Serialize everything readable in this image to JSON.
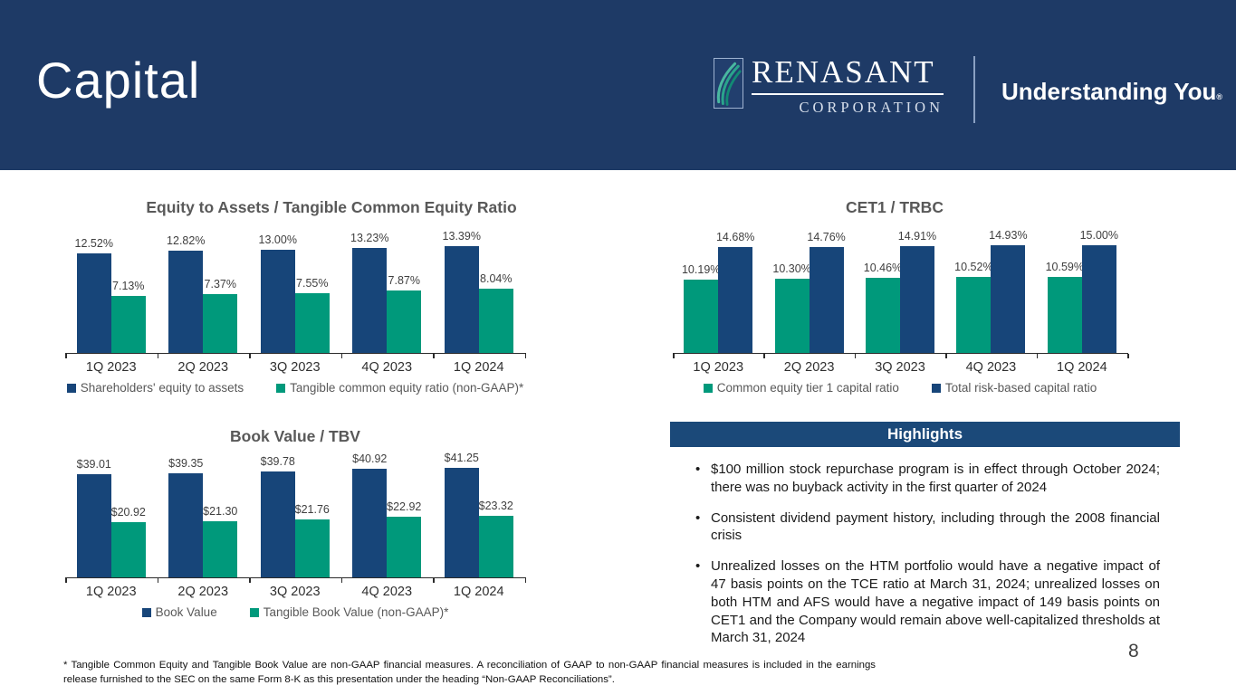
{
  "slide": {
    "title": "Capital",
    "page_number": "8",
    "footnote": "* Tangible Common Equity and Tangible Book Value are non-GAAP financial measures. A reconciliation of GAAP to non-GAAP financial measures is included in the earnings release furnished to the SEC on the same Form 8-K as this presentation under the heading “Non-GAAP Reconciliations”.",
    "bullet_char": "•"
  },
  "brand": {
    "logo_name": "RENASANT",
    "logo_subtitle": "CORPORATION",
    "tagline": "Understanding You",
    "tagline_mark": "®"
  },
  "colors": {
    "header_navy": "#1e3a66",
    "bar_navy": "#174579",
    "bar_teal": "#00997b",
    "highlights_navy": "#1b4979",
    "title_gray": "#595959",
    "value_label_gray": "#3f3f3f",
    "logo_teal": "#2aa48c"
  },
  "highlights": {
    "header": "Highlights",
    "bullets": [
      "$100 million stock repurchase program is in effect through October 2024; there was no buyback activity in the first quarter of 2024",
      "Consistent dividend payment history, including through the 2008 financial crisis",
      "Unrealized losses on the HTM portfolio would have a negative impact of 47 basis points on the TCE ratio at March 31, 2024; unrealized losses on both HTM and AFS would have a negative impact of 149 basis points on CET1 and the Company would remain above well-capitalized thresholds at March 31, 2024"
    ]
  },
  "chart_data": [
    {
      "id": "equity-to-assets-tce",
      "type": "bar",
      "title": "Equity to Assets / Tangible Common Equity Ratio",
      "categories": [
        "1Q 2023",
        "2Q 2023",
        "3Q 2023",
        "4Q 2023",
        "1Q 2024"
      ],
      "series": [
        {
          "name": "Shareholders' equity to assets",
          "color_key": "navy",
          "values": [
            12.52,
            12.82,
            13.0,
            13.23,
            13.39
          ],
          "labels": [
            "12.52%",
            "12.82%",
            "13.00%",
            "13.23%",
            "13.39%"
          ]
        },
        {
          "name": "Tangible common equity ratio (non-GAAP)*",
          "color_key": "teal",
          "values": [
            7.13,
            7.37,
            7.55,
            7.87,
            8.04
          ],
          "labels": [
            "7.13%",
            "7.37%",
            "7.55%",
            "7.87%",
            "8.04%"
          ]
        }
      ],
      "xlabel": "",
      "ylabel": "",
      "ylim": [
        0,
        14.1
      ],
      "grid": false,
      "legend_position": "bottom",
      "data_labels": true
    },
    {
      "id": "cet1-trbc",
      "type": "bar",
      "title": "CET1 / TRBC",
      "categories": [
        "1Q 2023",
        "2Q 2023",
        "3Q 2023",
        "4Q 2023",
        "1Q 2024"
      ],
      "series": [
        {
          "name": "Common equity tier 1 capital ratio",
          "color_key": "teal",
          "values": [
            10.19,
            10.3,
            10.46,
            10.52,
            10.59
          ],
          "labels": [
            "10.19%",
            "10.30%",
            "10.46%",
            "10.52%",
            "10.59%"
          ]
        },
        {
          "name": "Total risk-based capital ratio",
          "color_key": "navy",
          "values": [
            14.68,
            14.76,
            14.91,
            14.93,
            15.0
          ],
          "labels": [
            "14.68%",
            "14.76%",
            "14.91%",
            "14.93%",
            "15.00%"
          ]
        }
      ],
      "xlabel": "",
      "ylabel": "",
      "ylim": [
        0,
        15.6
      ],
      "grid": false,
      "legend_position": "bottom",
      "data_labels": true
    },
    {
      "id": "book-value-tbv",
      "type": "bar",
      "title": "Book Value / TBV",
      "categories": [
        "1Q 2023",
        "2Q 2023",
        "3Q 2023",
        "4Q 2023",
        "1Q 2024"
      ],
      "series": [
        {
          "name": "Book Value",
          "color_key": "navy",
          "values": [
            39.01,
            39.35,
            39.78,
            40.92,
            41.25
          ],
          "labels": [
            "$39.01",
            "$39.35",
            "$39.78",
            "$40.92",
            "$41.25"
          ]
        },
        {
          "name": "Tangible Book Value (non-GAAP)*",
          "color_key": "teal",
          "values": [
            20.92,
            21.3,
            21.76,
            22.92,
            23.32
          ],
          "labels": [
            "$20.92",
            "$21.30",
            "$21.76",
            "$22.92",
            "$23.32"
          ]
        }
      ],
      "xlabel": "",
      "ylabel": "",
      "ylim": [
        0,
        43
      ],
      "grid": false,
      "legend_position": "bottom",
      "data_labels": true
    }
  ]
}
